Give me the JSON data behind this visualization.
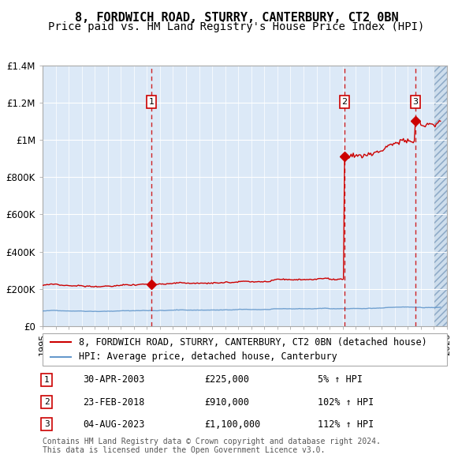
{
  "title": "8, FORDWICH ROAD, STURRY, CANTERBURY, CT2 0BN",
  "subtitle": "Price paid vs. HM Land Registry's House Price Index (HPI)",
  "xlabel": "",
  "ylabel": "",
  "ylim": [
    0,
    1400000
  ],
  "yticks": [
    0,
    200000,
    400000,
    600000,
    800000,
    1000000,
    1200000,
    1400000
  ],
  "ytick_labels": [
    "£0",
    "£200K",
    "£400K",
    "£600K",
    "£800K",
    "£1M",
    "£1.2M",
    "£1.4M"
  ],
  "xstart": 1995,
  "xend": 2026,
  "background_color": "#dce9f7",
  "plot_background": "#dce9f7",
  "hatch_color": "#b0c4de",
  "red_line_color": "#cc0000",
  "blue_line_color": "#6699cc",
  "grid_color": "#ffffff",
  "sale_points": [
    {
      "year": 2003.33,
      "price": 225000,
      "label": "1"
    },
    {
      "year": 2018.15,
      "price": 910000,
      "label": "2"
    },
    {
      "year": 2023.59,
      "price": 1100000,
      "label": "3"
    }
  ],
  "vline_years": [
    2003.33,
    2018.15,
    2023.59
  ],
  "legend_entries": [
    "8, FORDWICH ROAD, STURRY, CANTERBURY, CT2 0BN (detached house)",
    "HPI: Average price, detached house, Canterbury"
  ],
  "table_rows": [
    {
      "num": "1",
      "date": "30-APR-2003",
      "price": "£225,000",
      "hpi": "5% ↑ HPI"
    },
    {
      "num": "2",
      "date": "23-FEB-2018",
      "price": "£910,000",
      "hpi": "102% ↑ HPI"
    },
    {
      "num": "3",
      "date": "04-AUG-2023",
      "price": "£1,100,000",
      "hpi": "112% ↑ HPI"
    }
  ],
  "footer": "Contains HM Land Registry data © Crown copyright and database right 2024.\nThis data is licensed under the Open Government Licence v3.0.",
  "title_fontsize": 11,
  "subtitle_fontsize": 10,
  "tick_fontsize": 8.5,
  "legend_fontsize": 8.5
}
